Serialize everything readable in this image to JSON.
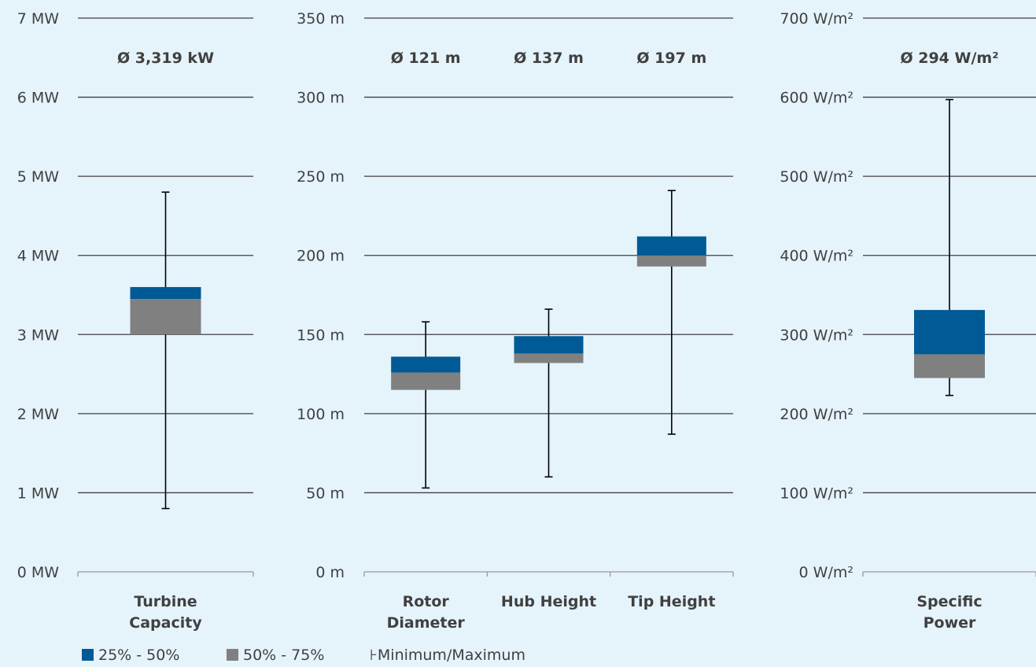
{
  "colors": {
    "q25_50": "#005a96",
    "q50_75": "#808080",
    "whisker": "#000000",
    "grid": "#404040",
    "background": "#e5f3fb"
  },
  "chart_data": [
    {
      "type": "box",
      "unit": "MW",
      "ylim": [
        0,
        7
      ],
      "yticks": [
        "0 MW",
        "1 MW",
        "2 MW",
        "3 MW",
        "4 MW",
        "5 MW",
        "6 MW",
        "7 MW"
      ],
      "grid": true,
      "series": [
        {
          "category": "Turbine Capacity",
          "average_label": "Ø 3,319 kW",
          "min": 0.8,
          "q25": 3.0,
          "median": 3.45,
          "q75": 3.6,
          "max": 4.8
        }
      ]
    },
    {
      "type": "box",
      "unit": "m",
      "ylim": [
        0,
        350
      ],
      "yticks": [
        "0 m",
        "50 m",
        "100 m",
        "150 m",
        "200 m",
        "250 m",
        "300 m",
        "350 m"
      ],
      "grid": true,
      "series": [
        {
          "category": "Rotor Diameter",
          "average_label": "Ø 121 m",
          "min": 53,
          "q25": 115,
          "median": 126,
          "q75": 136,
          "max": 158
        },
        {
          "category": "Hub Height",
          "average_label": "Ø 137 m",
          "min": 60,
          "q25": 132,
          "median": 138,
          "q75": 149,
          "max": 166
        },
        {
          "category": "Tip Height",
          "average_label": "Ø 197 m",
          "min": 87,
          "q25": 193,
          "median": 200,
          "q75": 212,
          "max": 241
        }
      ]
    },
    {
      "type": "box",
      "unit": "W/m²",
      "ylim": [
        0,
        700
      ],
      "yticks": [
        "0 W/m²",
        "100 W/m²",
        "200 W/m²",
        "300 W/m²",
        "400 W/m²",
        "500 W/m²",
        "600 W/m²",
        "700 W/m²"
      ],
      "grid": true,
      "series": [
        {
          "category": "Specific Power",
          "average_label": "Ø 294 W/m²",
          "min": 223,
          "q25": 245,
          "median": 275,
          "q75": 331,
          "max": 597
        }
      ]
    }
  ],
  "legend": {
    "items": [
      {
        "label": "25% - 50%"
      },
      {
        "label": "50% - 75%"
      },
      {
        "symbol": "⊦",
        "label": "Minimum/Maximum"
      }
    ]
  }
}
